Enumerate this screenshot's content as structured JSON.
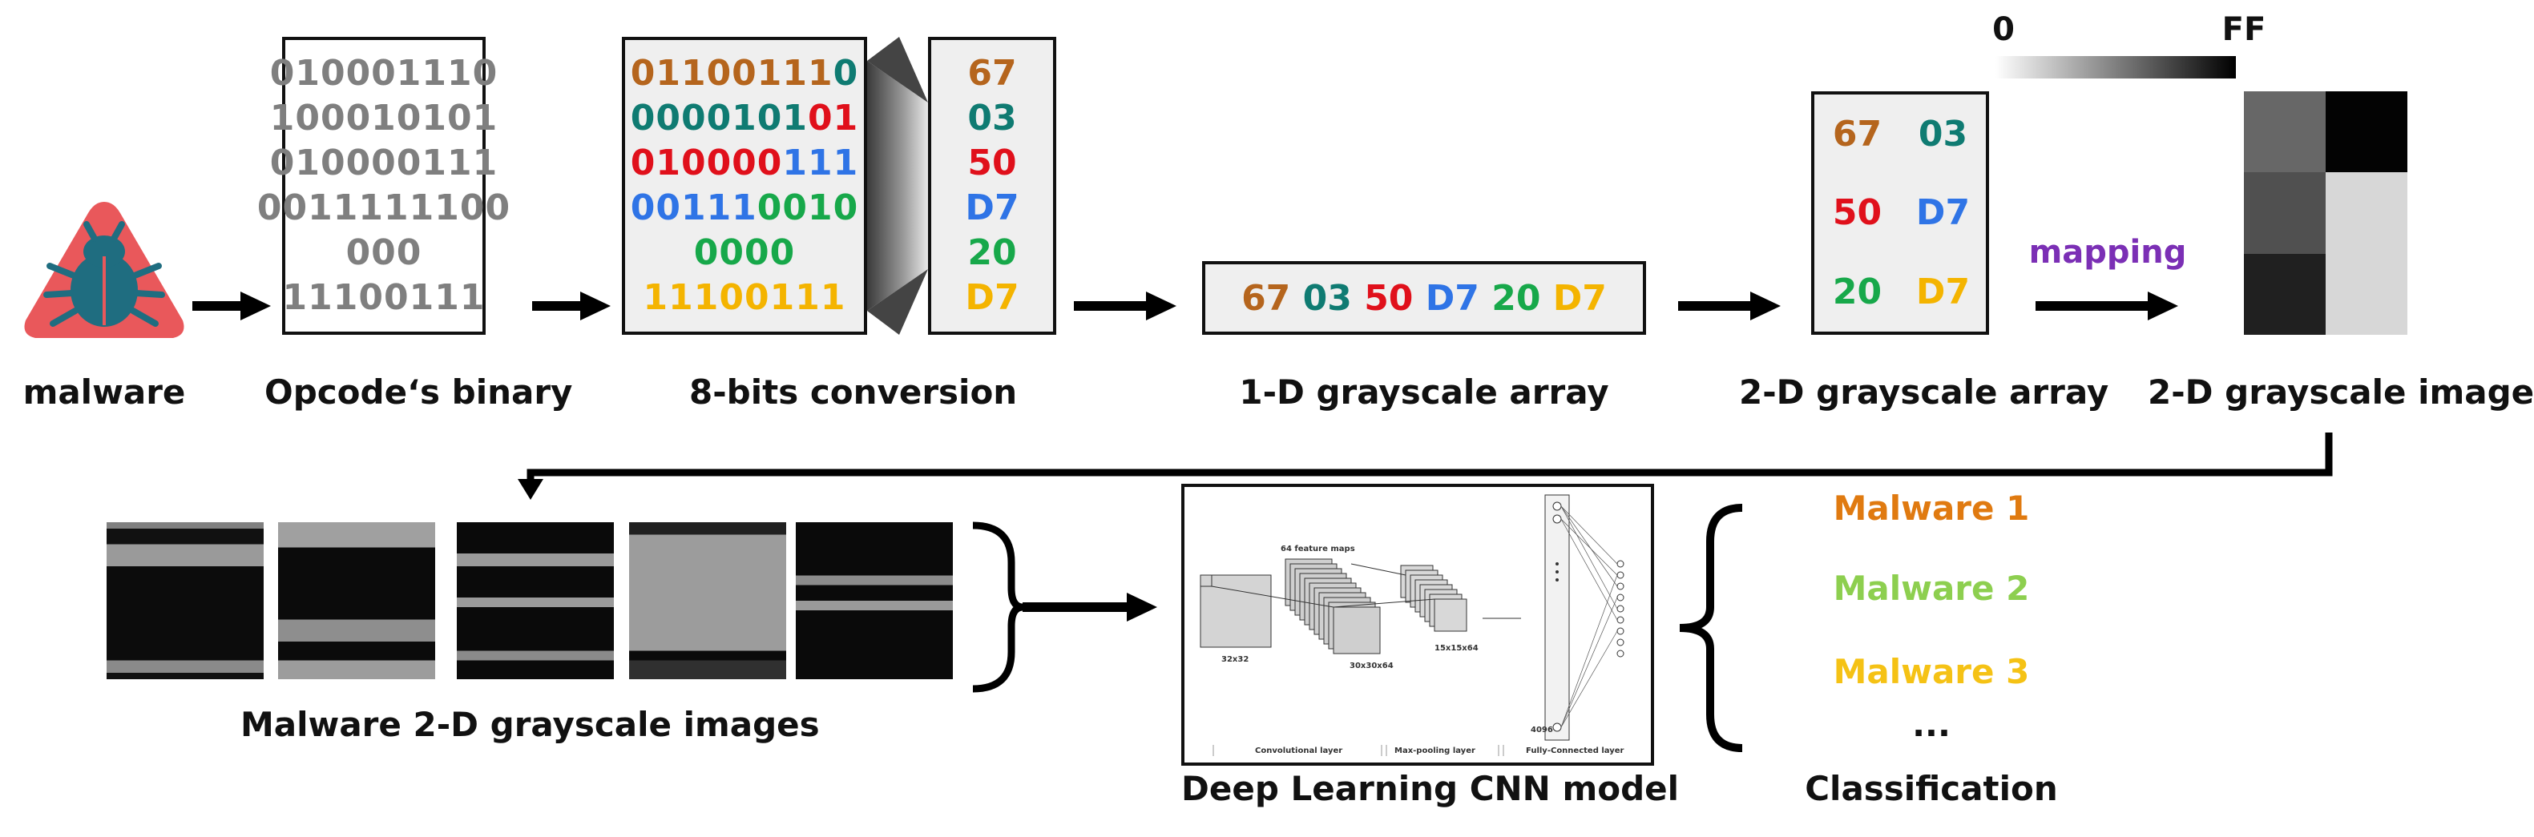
{
  "colors": {
    "brown": "#b5651d",
    "teal": "#0f7b72",
    "red": "#e0101b",
    "blue": "#2f74e6",
    "green": "#17a84a",
    "yellow": "#f4b400",
    "gray": "#7f7f7f",
    "purple": "#7b2fb5",
    "orange": "#e07a10",
    "lightgreen": "#8dcf4f",
    "gold": "#f5c215"
  },
  "icons": {
    "malware": "virus-bug-icon"
  },
  "labels": {
    "malware": "malware",
    "opcode_binary": "Opcode‘s binary",
    "eight_bits": "8-bits conversion",
    "one_d_array": "1-D grayscale array",
    "two_d_array": "2-D grayscale array",
    "two_d_image": "2-D grayscale image",
    "mapping": "mapping",
    "malware_images": "Malware 2-D grayscale images",
    "cnn_model": "Deep Learning CNN model",
    "classification": "Classification"
  },
  "colorbar": {
    "min_label": "0",
    "max_label": "FF"
  },
  "opcode_binary_lines": [
    "010001110",
    "100010101",
    "010000111",
    "0011111100",
    "000",
    "11100111"
  ],
  "eight_bit_lines": [
    [
      {
        "t": "01100111",
        "c": "brown"
      },
      {
        "t": "0",
        "c": "teal"
      }
    ],
    [
      {
        "t": "0000101",
        "c": "teal"
      },
      {
        "t": "01",
        "c": "red"
      }
    ],
    [
      {
        "t": "010000",
        "c": "red"
      },
      {
        "t": "111",
        "c": "blue"
      }
    ],
    [
      {
        "t": "00111",
        "c": "blue"
      },
      {
        "t": "0010",
        "c": "green"
      }
    ],
    [
      {
        "t": "0000",
        "c": "green"
      }
    ],
    [
      {
        "t": "11100111",
        "c": "yellow"
      }
    ]
  ],
  "hex_values": [
    {
      "t": "67",
      "c": "brown"
    },
    {
      "t": "03",
      "c": "teal"
    },
    {
      "t": "50",
      "c": "red"
    },
    {
      "t": "D7",
      "c": "blue"
    },
    {
      "t": "20",
      "c": "green"
    },
    {
      "t": "D7",
      "c": "yellow"
    }
  ],
  "grid_2d": [
    [
      {
        "t": "67",
        "c": "brown"
      },
      {
        "t": "03",
        "c": "teal"
      }
    ],
    [
      {
        "t": "50",
        "c": "red"
      },
      {
        "t": "D7",
        "c": "blue"
      }
    ],
    [
      {
        "t": "20",
        "c": "green"
      },
      {
        "t": "D7",
        "c": "yellow"
      }
    ]
  ],
  "gray_cells": [
    "#676767",
    "#030303",
    "#505050",
    "#d7d7d7",
    "#202020",
    "#d7d7d7"
  ],
  "cnn": {
    "input_size": "32x32",
    "feature_maps": "64 feature maps",
    "conv_size": "30x30x64",
    "pool_size": "15x15x64",
    "fc_size": "4096",
    "conv_layer": "Convolutional layer",
    "pool_layer": "Max-pooling layer",
    "fc_layer": "Fully-Connected layer"
  },
  "classification": [
    {
      "t": "Malware 1",
      "c": "orange"
    },
    {
      "t": "Malware 2",
      "c": "lightgreen"
    },
    {
      "t": "Malware 3",
      "c": "gold"
    },
    {
      "t": "...",
      "c": "black"
    }
  ]
}
